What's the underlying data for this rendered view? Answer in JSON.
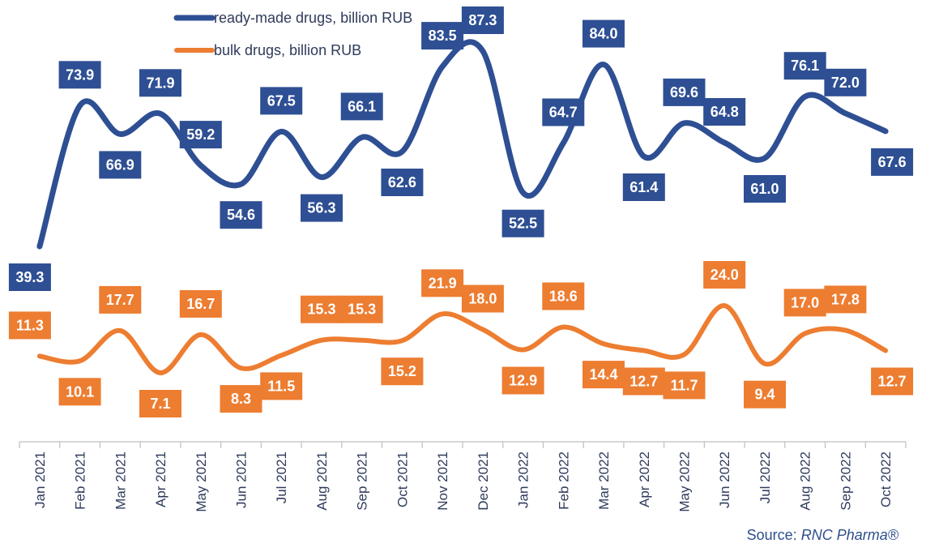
{
  "chart_data": {
    "type": "line",
    "categories": [
      "Jan 2021",
      "Feb 2021",
      "Mar 2021",
      "Apr 2021",
      "May 2021",
      "Jun 2021",
      "Jul 2021",
      "Aug 2021",
      "Sep 2021",
      "Oct 2021",
      "Nov 2021",
      "Dec 2021",
      "Jan 2022",
      "Feb 2022",
      "Mar 2022",
      "Apr 2022",
      "May 2022",
      "Jun 2022",
      "Jul 2022",
      "Aug 2022",
      "Sep 2022",
      "Oct 2022"
    ],
    "series": [
      {
        "name": "ready-made drugs, billion RUB",
        "color": "#2E4F93",
        "values": [
          39.3,
          73.9,
          66.9,
          71.9,
          59.2,
          54.6,
          67.5,
          56.3,
          66.1,
          62.6,
          83.5,
          87.3,
          52.5,
          64.7,
          84.0,
          61.4,
          69.6,
          64.8,
          61.0,
          76.1,
          72.0,
          67.6
        ],
        "labels": [
          "39.3",
          "73.9",
          "66.9",
          "71.9",
          "59.2",
          "54.6",
          "67.5",
          "56.3",
          "66.1",
          "62.6",
          "83.5",
          "87.3",
          "52.5",
          "64.7",
          "84.0",
          "61.4",
          "69.6",
          "64.8",
          "61.0",
          "76.1",
          "72.0",
          "67.6"
        ]
      },
      {
        "name": "bulk drugs, billion RUB",
        "color": "#ED7D31",
        "values": [
          11.3,
          10.1,
          17.7,
          7.1,
          16.7,
          8.3,
          11.5,
          15.3,
          15.3,
          15.2,
          21.9,
          18.0,
          12.9,
          18.6,
          14.4,
          12.7,
          11.7,
          24.0,
          9.4,
          17.0,
          17.8,
          12.7
        ],
        "labels": [
          "11.3",
          "10.1",
          "17.7",
          "7.1",
          "16.7",
          "8.3",
          "11.5",
          "15.3",
          "15.3",
          "15.2",
          "21.9",
          "18.0",
          "12.9",
          "18.6",
          "14.4",
          "12.7",
          "11.7",
          "24.0",
          "9.4",
          "17.0",
          "17.8",
          "12.7"
        ]
      }
    ],
    "legend_position": "top-left",
    "grid": false,
    "source_prefix": "Source: ",
    "source_name": "RNC Pharma®"
  }
}
